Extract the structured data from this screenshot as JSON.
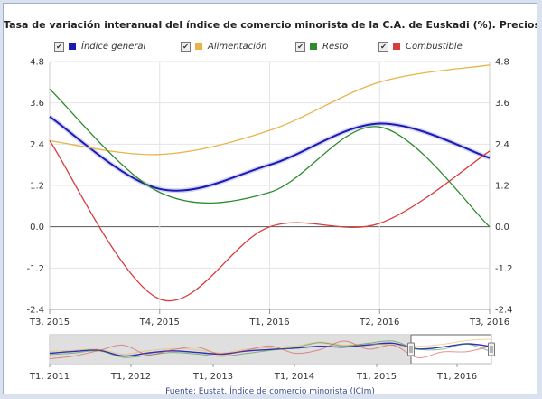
{
  "chart_data": {
    "type": "line",
    "title": "Tasa de variación interanual del índice de comercio minorista de la C.A. de Euskadi (%). Precios constantes",
    "categories": [
      "T3, 2015",
      "T4, 2015",
      "T1, 2016",
      "T2, 2016",
      "T3, 2016"
    ],
    "x": [
      0,
      1,
      2,
      3,
      4
    ],
    "ylim": [
      -2.4,
      4.8
    ],
    "yticks": [
      "-2.4",
      "-1.2",
      "0.0",
      "1.2",
      "2.4",
      "3.6",
      "4.8"
    ],
    "yticks_values": [
      -2.4,
      -1.2,
      0,
      1.2,
      2.4,
      3.6,
      4.8
    ],
    "grid": true,
    "legend": "top",
    "series": [
      {
        "name": "Índice general",
        "color": "#1a1ab5",
        "values": [
          3.2,
          1.1,
          1.8,
          3.0,
          2.0
        ]
      },
      {
        "name": "Alimentación",
        "color": "#e8b34a",
        "values": [
          2.5,
          2.1,
          2.8,
          4.2,
          4.7
        ]
      },
      {
        "name": "Resto",
        "color": "#2e8b2e",
        "values": [
          4.0,
          1.0,
          1.0,
          2.9,
          0.0
        ]
      },
      {
        "name": "Combustible",
        "color": "#d93a3a",
        "values": [
          2.5,
          -2.1,
          0.0,
          0.1,
          2.2
        ]
      }
    ],
    "navigator": {
      "labels": [
        "T1, 2011",
        "T1, 2012",
        "T1, 2013",
        "T1, 2014",
        "T1, 2015",
        "T1, 2016"
      ],
      "series": [
        {
          "name": "Índice general",
          "values": [
            -0.5,
            0.2,
            0.6,
            -1.5,
            -0.4,
            0.4,
            -0.2,
            -0.8,
            0.3,
            0.9,
            1.4,
            2.1,
            1.8,
            2.6,
            3.2,
            1.1,
            1.8,
            3.0,
            2.0
          ]
        },
        {
          "name": "Alimentación",
          "values": [
            0.2,
            0.6,
            1.0,
            -0.8,
            0.4,
            1.2,
            0.8,
            -0.4,
            1.0,
            1.6,
            2.2,
            3.6,
            2.5,
            3.0,
            2.5,
            2.1,
            2.8,
            4.2,
            4.7
          ]
        },
        {
          "name": "Resto",
          "values": [
            -1.0,
            -0.4,
            0.4,
            -2.0,
            -1.2,
            -0.2,
            -0.8,
            -1.6,
            -0.6,
            0.6,
            1.6,
            3.4,
            2.2,
            3.2,
            4.0,
            1.0,
            1.0,
            2.9,
            0.0
          ]
        },
        {
          "name": "Combustible",
          "values": [
            -2.5,
            -1.5,
            0.5,
            2.5,
            -1.0,
            0.8,
            1.8,
            -1.0,
            0.6,
            2.2,
            -0.5,
            0.8,
            4.0,
            1.0,
            2.5,
            -2.1,
            0.0,
            0.1,
            2.2
          ]
        }
      ]
    }
  },
  "legend_check_mark": "✔",
  "source": "Fuente: Eustat. Índice de comercio minorista (ICIm)"
}
